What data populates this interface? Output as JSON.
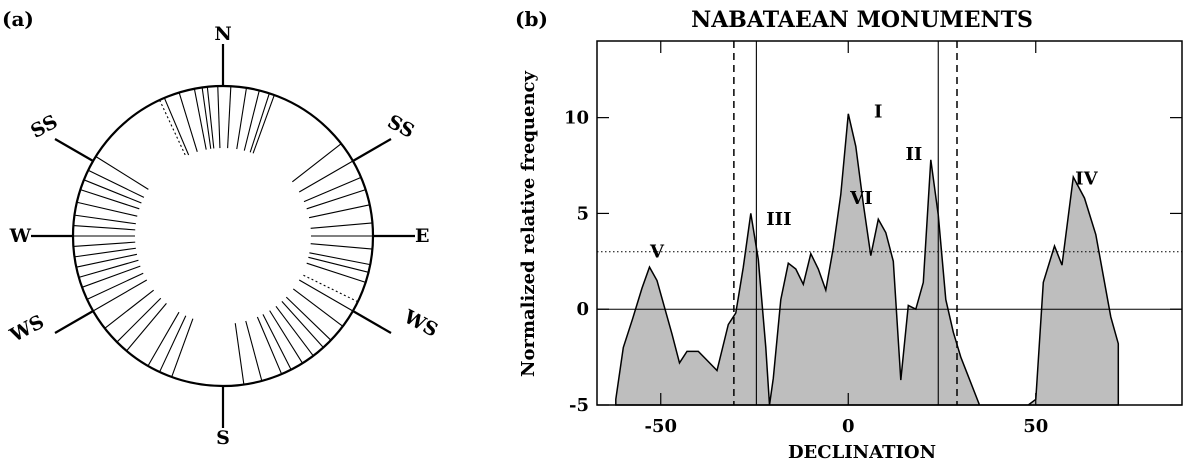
{
  "colors": {
    "fill": "#bebebe",
    "line": "#000000"
  },
  "panel_a": {
    "label": "(a)",
    "directions": {
      "n": "N",
      "e": "E",
      "s": "S",
      "w": "W",
      "ne": "SS",
      "nw": "SS",
      "se": "WS",
      "sw": "WS"
    }
  },
  "panel_b": {
    "label": "(b)",
    "title": "NABATAEAN MONUMENTS",
    "xlabel": "DECLINATION",
    "ylabel": "Normalized relative frequency"
  },
  "chart_data": {
    "type": "area",
    "title": "NABATAEAN MONUMENTS",
    "xlabel": "DECLINATION",
    "ylabel": "Normalized relative frequency",
    "xlim": [
      -67,
      89
    ],
    "ylim": [
      -5,
      14
    ],
    "xticks": [
      -50,
      0,
      50
    ],
    "yticks": [
      -5,
      0,
      5,
      10
    ],
    "threshold": 3.0,
    "vlines_solid": [
      -24.5,
      24
    ],
    "vlines_dashed": [
      -30.5,
      29
    ],
    "x": [
      -62,
      -60,
      -57.5,
      -55,
      -53,
      -51,
      -49,
      -47,
      -45,
      -43,
      -40,
      -38,
      -35,
      -32,
      -30,
      -28,
      -26,
      -24,
      -22,
      -21,
      -20,
      -18,
      -16,
      -14,
      -12,
      -10,
      -8,
      -6,
      -4,
      -2,
      0,
      2,
      4,
      6,
      8,
      10,
      12,
      14,
      16,
      18,
      20,
      22,
      24,
      26,
      28,
      30,
      32,
      35,
      40,
      45,
      48,
      50,
      52,
      55,
      57,
      60,
      63,
      66,
      70,
      72
    ],
    "y": [
      -4.7,
      -2.0,
      -0.5,
      1.1,
      2.2,
      1.5,
      0.1,
      -1.3,
      -2.8,
      -2.2,
      -2.2,
      -2.6,
      -3.2,
      -0.8,
      -0.2,
      2.2,
      5.0,
      2.6,
      -2.0,
      -5.0,
      -3.6,
      0.5,
      2.4,
      2.1,
      1.3,
      2.9,
      2.1,
      1.0,
      3.2,
      6.0,
      10.2,
      8.5,
      5.5,
      2.8,
      4.7,
      4.0,
      2.5,
      -3.7,
      0.2,
      0.0,
      1.4,
      7.8,
      4.9,
      0.5,
      -1.2,
      -2.5,
      -3.5,
      -5.0,
      -5.0,
      -5.0,
      -5.0,
      -4.7,
      1.4,
      3.3,
      2.3,
      6.9,
      5.8,
      3.9,
      -0.4,
      -1.8
    ],
    "peak_labels": [
      {
        "text": "V",
        "x": -51,
        "y": 2.7
      },
      {
        "text": "III",
        "x": -18.5,
        "y": 4.4
      },
      {
        "text": "I",
        "x": 8,
        "y": 10.0
      },
      {
        "text": "VI",
        "x": 3.5,
        "y": 5.5
      },
      {
        "text": "II",
        "x": 17.5,
        "y": 7.8
      },
      {
        "text": "IV",
        "x": 63.5,
        "y": 6.5
      }
    ]
  },
  "compass_data": {
    "azimuths_solid": [
      52,
      60,
      67,
      72,
      78,
      85,
      90,
      95,
      101,
      104,
      108,
      120,
      127,
      134,
      138,
      143,
      148,
      153,
      157,
      165,
      172,
      200,
      205,
      210,
      220,
      225,
      232,
      240,
      245,
      250,
      254,
      258,
      262,
      266,
      270,
      274,
      278,
      283,
      288,
      292,
      296,
      302,
      337,
      343,
      349,
      352,
      354,
      358,
      3,
      9,
      14,
      18,
      20
    ],
    "azimuths_dotted": [
      116,
      335
    ]
  }
}
